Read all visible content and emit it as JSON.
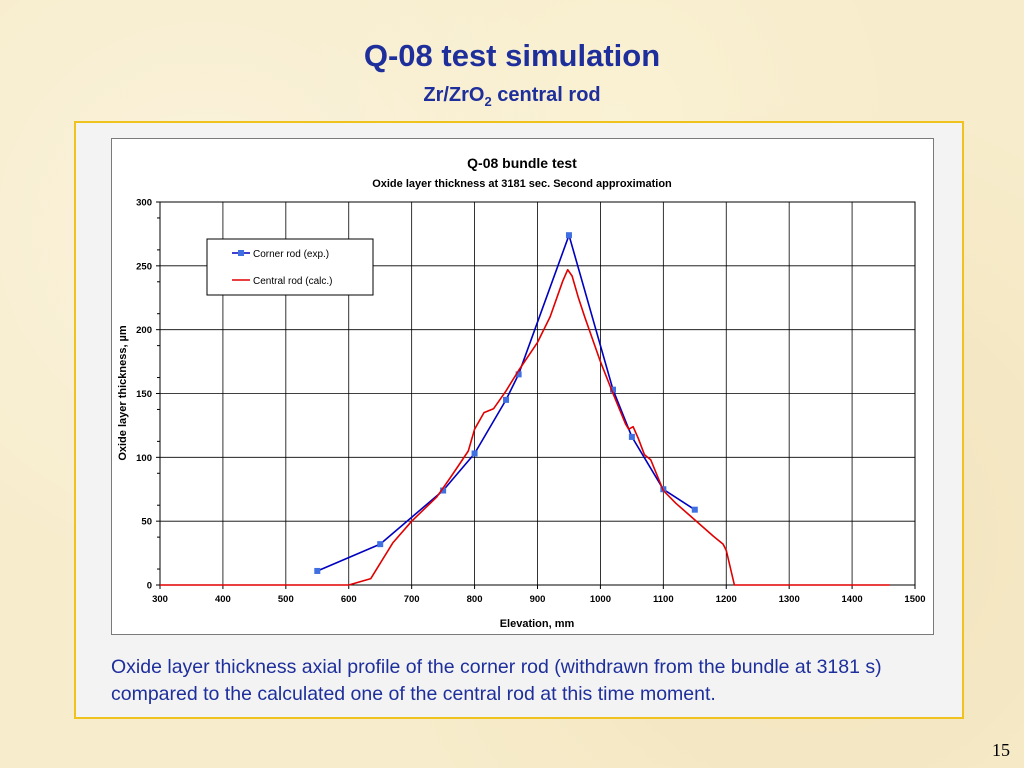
{
  "slide": {
    "title": "Q-08 test simulation",
    "subtitle_main": "Zr/ZrO",
    "subtitle_sub": "2",
    "subtitle_rest": " central rod",
    "caption": "Oxide layer thickness axial profile of the corner rod (withdrawn from the bundle at 3181 s) compared to the calculated one of the central rod at this time moment.",
    "page_number": "15"
  },
  "chart_data": {
    "type": "line",
    "title": "Q-08 bundle test",
    "subtitle": "Oxide layer thickness at 3181 sec. Second approximation",
    "xlabel": "Elevation, mm",
    "ylabel": "Oxide layer thickness, µm",
    "xlim": [
      300,
      1500
    ],
    "ylim": [
      0,
      300
    ],
    "x_ticks": [
      "300",
      "400",
      "500",
      "600",
      "700",
      "800",
      "900",
      "1000",
      "1100",
      "1200",
      "1300",
      "1400",
      "1500"
    ],
    "y_ticks": [
      "0",
      "50",
      "100",
      "150",
      "200",
      "250",
      "300"
    ],
    "grid": true,
    "legend_position": "top-left",
    "series": [
      {
        "name": "Corner rod (exp.)",
        "color": "#0000c0",
        "marker_color": "#3f6fe0",
        "marker": "square",
        "points": [
          [
            550,
            11
          ],
          [
            650,
            32
          ],
          [
            750,
            74
          ],
          [
            800,
            103
          ],
          [
            850,
            145
          ],
          [
            870,
            165
          ],
          [
            950,
            274
          ],
          [
            1020,
            153
          ],
          [
            1050,
            116
          ],
          [
            1100,
            75
          ],
          [
            1150,
            59
          ]
        ]
      },
      {
        "name": "Central rod (calc.)",
        "color": "#e00000",
        "marker": "none",
        "points": [
          [
            300,
            0
          ],
          [
            600,
            0
          ],
          [
            635,
            5
          ],
          [
            650,
            17
          ],
          [
            670,
            33
          ],
          [
            700,
            50
          ],
          [
            740,
            69
          ],
          [
            760,
            83
          ],
          [
            775,
            94
          ],
          [
            790,
            105
          ],
          [
            800,
            122
          ],
          [
            815,
            135
          ],
          [
            830,
            138
          ],
          [
            850,
            152
          ],
          [
            870,
            168
          ],
          [
            900,
            190
          ],
          [
            920,
            210
          ],
          [
            940,
            238
          ],
          [
            948,
            247
          ],
          [
            955,
            242
          ],
          [
            965,
            225
          ],
          [
            975,
            210
          ],
          [
            1000,
            175
          ],
          [
            1020,
            150
          ],
          [
            1040,
            126
          ],
          [
            1045,
            122
          ],
          [
            1052,
            124
          ],
          [
            1060,
            115
          ],
          [
            1070,
            102
          ],
          [
            1080,
            98
          ],
          [
            1100,
            74
          ],
          [
            1120,
            64
          ],
          [
            1150,
            51
          ],
          [
            1180,
            38
          ],
          [
            1195,
            32
          ],
          [
            1200,
            27
          ],
          [
            1213,
            0
          ],
          [
            1460,
            0
          ]
        ]
      }
    ]
  }
}
